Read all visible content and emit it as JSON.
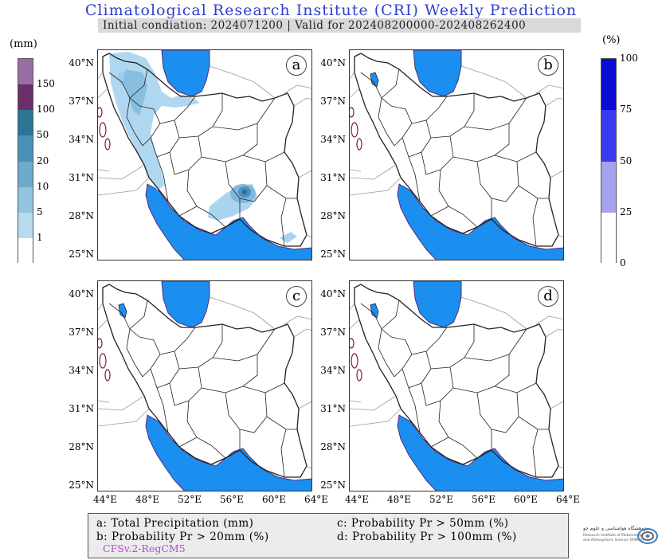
{
  "title": "Climatological Research Institute (CRI) Weekly Prediction",
  "subtitle": "Initial condiation: 2024071200 | Valid for 202408200000-202408262400",
  "colors": {
    "sea": "#1a8ff0",
    "border": "#222222",
    "rain_light": "#a7d3ee",
    "rain_mid": "#7fb8dc",
    "rain_dark": "#4f8fbf",
    "prob_blue": "#1a1ae0"
  },
  "lat_labels": [
    "40°N",
    "37°N",
    "34°N",
    "31°N",
    "28°N",
    "25°N"
  ],
  "lon_labels": [
    "44°E",
    "48°E",
    "52°E",
    "56°E",
    "60°E",
    "64°E"
  ],
  "panels": [
    {
      "id": "a",
      "label": "a"
    },
    {
      "id": "b",
      "label": "b"
    },
    {
      "id": "c",
      "label": "c"
    },
    {
      "id": "d",
      "label": "d"
    }
  ],
  "precip_colorbar": {
    "unit": "(mm)",
    "ticks": [
      "150",
      "100",
      "50",
      "20",
      "10",
      "5",
      "1"
    ],
    "colors": [
      "#9a6ea3",
      "#6b2e66",
      "#2c7595",
      "#4a8fb5",
      "#6fa9cc",
      "#93c4e0",
      "#b8dbf0",
      "#ffffff"
    ]
  },
  "prob_colorbar": {
    "unit": "(%)",
    "ticks": [
      "100",
      "75",
      "50",
      "25",
      "0"
    ],
    "colors": [
      "#0b0bd6",
      "#3a3af2",
      "#a3a3f0",
      "#ffffff"
    ]
  },
  "legend": {
    "a": "a: Total Precipitation (mm)",
    "b": "b: Probability Pr > 20mm (%)",
    "c": "c: Probability Pr > 50mm (%)",
    "d": "d: Probability Pr > 100mm (%)",
    "model": "CFSv.2-RegCM5"
  },
  "logo": {
    "line1": "پژوهشگاه هواشناسی و علوم جو",
    "line2": "Research Institute of Meteorology",
    "line3": "and Atmospheric Science (RIMAS)"
  }
}
